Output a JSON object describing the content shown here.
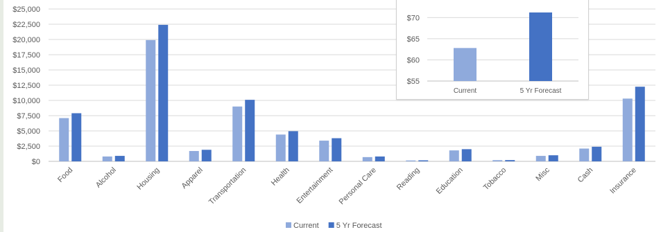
{
  "chart_data": [
    {
      "type": "bar",
      "categories": [
        "Food",
        "Alcohol",
        "Housing",
        "Apparel",
        "Transportation",
        "Health",
        "Entertainment",
        "Personal Care",
        "Reading",
        "Education",
        "Tobacco",
        "Misc",
        "Cash",
        "Insurance"
      ],
      "series": [
        {
          "name": "Current",
          "color": "#8faadc",
          "values": [
            7100,
            800,
            19900,
            1700,
            9000,
            4400,
            3400,
            700,
            150,
            1800,
            200,
            900,
            2100,
            10300
          ]
        },
        {
          "name": "5 Yr Forecast",
          "color": "#4472c4",
          "values": [
            7900,
            900,
            22400,
            1900,
            10100,
            4950,
            3800,
            800,
            170,
            2000,
            210,
            1000,
            2400,
            12250
          ]
        }
      ],
      "yticks": [
        "$0",
        "$2,500",
        "$5,000",
        "$7,500",
        "$10,000",
        "$12,500",
        "$15,000",
        "$17,500",
        "$20,000",
        "$22,500",
        "$25,000"
      ],
      "ylim": [
        0,
        25000
      ],
      "grid": true,
      "legend": "bottom"
    },
    {
      "type": "bar",
      "categories": [
        "Current",
        "5 Yr Forecast"
      ],
      "values": [
        62.8,
        71.2
      ],
      "colors": [
        "#8faadc",
        "#4472c4"
      ],
      "yticks": [
        "$55",
        "$60",
        "$65",
        "$70"
      ],
      "ylim": [
        55,
        73
      ],
      "grid": true
    }
  ]
}
